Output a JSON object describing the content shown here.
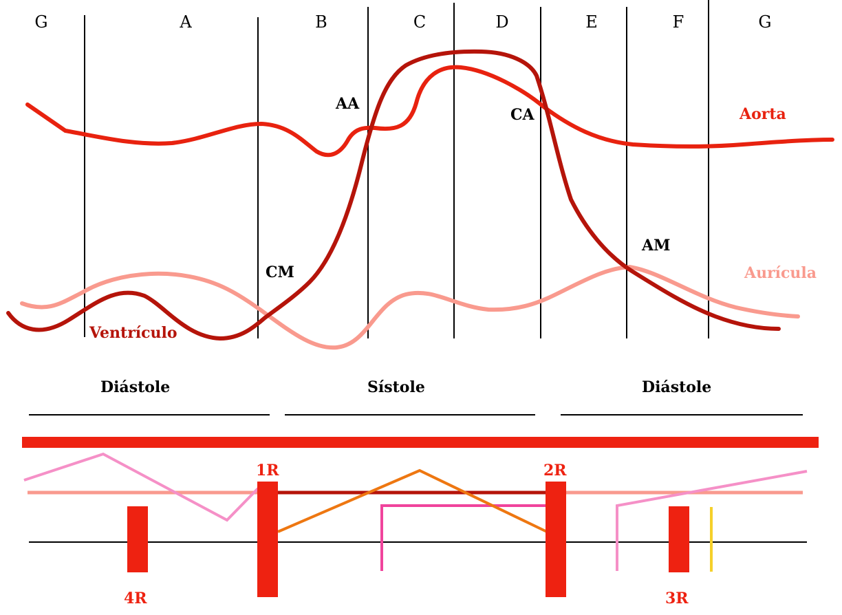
{
  "phases": [
    "G",
    "A",
    "B",
    "C",
    "D",
    "E",
    "F",
    "G"
  ],
  "curves": {
    "aorta": "Aorta",
    "ventricle": "Ventrículo",
    "atrium": "Aurícula"
  },
  "events": {
    "aortic_opening": "AA",
    "aortic_closure": "CA",
    "mitral_closure": "CM",
    "mitral_opening": "AM"
  },
  "periods": {
    "diastole_left": "Diástole",
    "systole": "Sístole",
    "diastole_right": "Diástole"
  },
  "sounds": {
    "first": "1R",
    "second": "2R",
    "third": "3R",
    "fourth": "4R"
  },
  "colors": {
    "aorta": "#e8220f",
    "ventricle": "#b5140a",
    "atrium": "#f99a8e",
    "sound_bar": "#ee2211",
    "pink_line": "#f590c7",
    "magenta_line": "#f0449c",
    "orange_line": "#ee7711",
    "yellow_line": "#f5d02a"
  }
}
